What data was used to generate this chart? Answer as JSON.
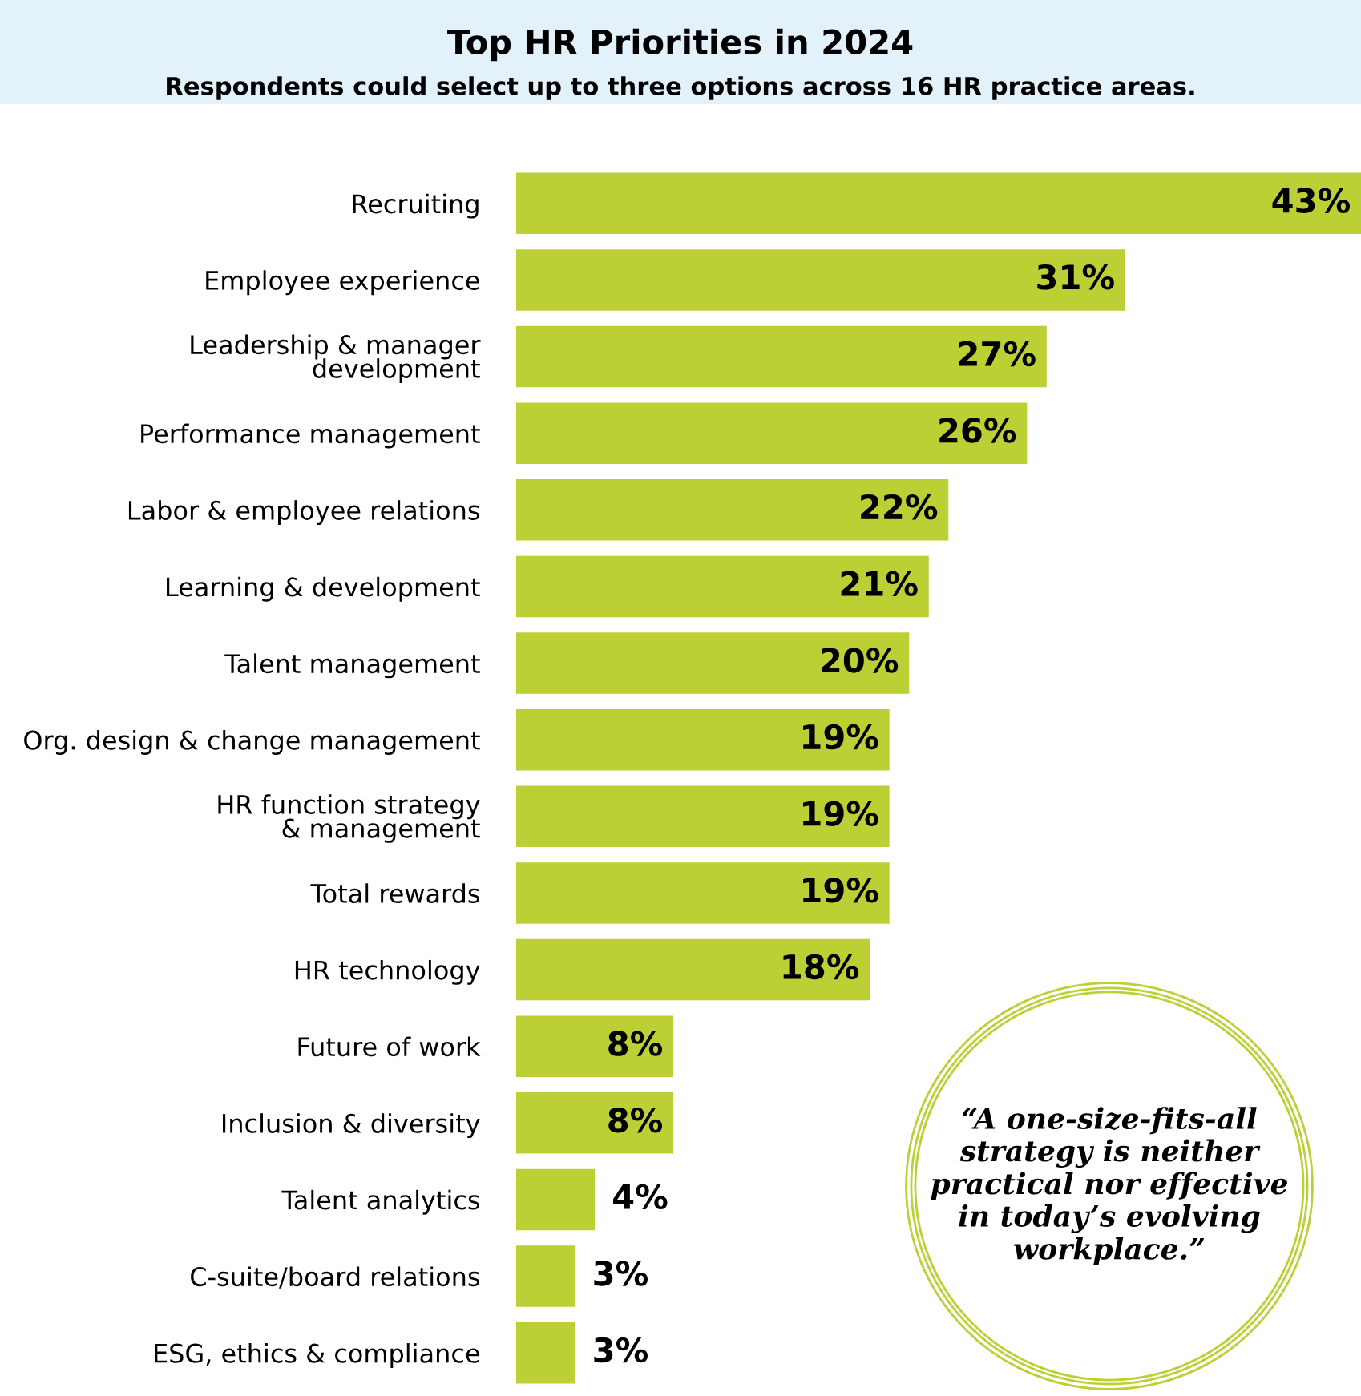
{
  "chart_data": {
    "type": "bar",
    "orientation": "horizontal",
    "title": "Top HR Priorities in 2024",
    "subtitle": "Respondents could select up to three options across 16 HR practice areas.",
    "categories": [
      "Recruiting",
      "Employee experience",
      "Leadership & manager\ndevelopment",
      "Performance management",
      "Labor & employee relations",
      "Learning & development",
      "Talent management",
      "Org. design & change management",
      "HR function strategy\n& management",
      "Total rewards",
      "HR technology",
      "Future of work",
      "Inclusion & diversity",
      "Talent analytics",
      "C-suite/board relations",
      "ESG, ethics & compliance"
    ],
    "values": [
      43,
      31,
      27,
      26,
      22,
      21,
      20,
      19,
      19,
      19,
      18,
      8,
      8,
      4,
      3,
      3
    ],
    "value_labels": [
      "43%",
      "31%",
      "27%",
      "26%",
      "22%",
      "21%",
      "20%",
      "19%",
      "19%",
      "19%",
      "18%",
      "8%",
      "8%",
      "4%",
      "3%",
      "3%"
    ],
    "color": "#bccf35",
    "annotations": [
      "“A one-size-fits-all strategy is neither practical nor effective in today’s evolving workplace.”"
    ]
  }
}
